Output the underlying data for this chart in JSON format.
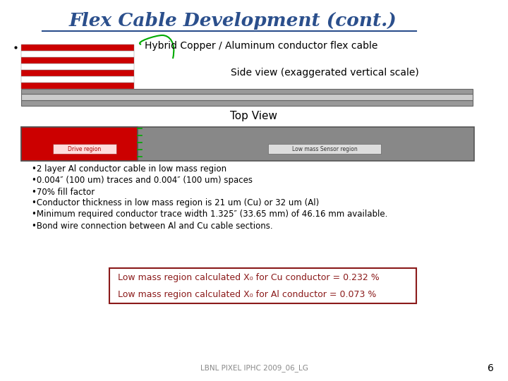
{
  "title": "Flex Cable Development (cont.)",
  "subtitle": "Hybrid Copper / Aluminum conductor flex cable",
  "side_view_label": "Side view (exaggerated vertical scale)",
  "top_view_label": "Top View",
  "bullet_points": [
    "•2 layer Al conductor cable in low mass region",
    "•0.004″ (100 um) traces and 0.004″ (100 um) spaces",
    "•70% fill factor",
    "•Conductor thickness in low mass region is 21 um (Cu) or 32 um (Al)",
    "•Minimum required conductor trace width 1.325″ (33.65 mm) of 46.16 mm available.",
    "•Bond wire connection between Al and Cu cable sections."
  ],
  "box_line1": "Low mass region calculated X₀ for Cu conductor = 0.232 %",
  "box_line2": "Low mass region calculated X₀ for Al conductor = 0.073 %",
  "drive_label": "Drive region",
  "sensor_label": "Low mass Sensor region",
  "footer": "LBNL PIXEL IPHC 2009_06_LG",
  "page_num": "6",
  "title_color": "#2B4F8C",
  "bullet_color": "#000000",
  "box_text_color": "#8B1A1A",
  "box_border_color": "#8B1A1A",
  "footer_color": "#888888",
  "red_stripe": "#CC0000",
  "white_stripe": "#FFFFFF",
  "gray_dark": "#999999",
  "gray_light": "#CCCCCC",
  "gray_sensor": "#888888",
  "green_arch": "#00AA00"
}
